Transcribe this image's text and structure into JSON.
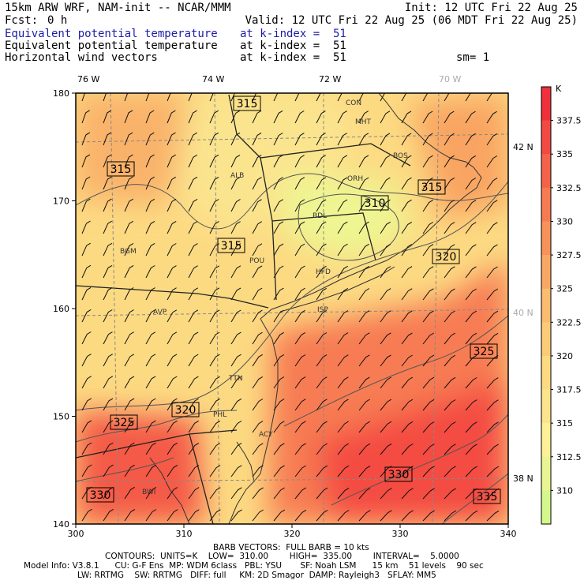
{
  "header": {
    "model": "15km ARW WRF, NAM-init -- NCAR/MMM",
    "init": "Init: 12 UTC Fri 22 Aug 25",
    "fcst_label": "Fcst:",
    "fcst_value": "0 h",
    "valid": "Valid: 12 UTC Fri 22 Aug 25 (06 MDT Fri 22 Aug 25)",
    "fields": [
      {
        "name": "Equivalent potential temperature",
        "level": "at k-index =  51",
        "highlight": true
      },
      {
        "name": "Equivalent potential temperature",
        "level": "at k-index =  51",
        "highlight": false
      },
      {
        "name": "Horizontal wind vectors",
        "level": "at k-index =  51",
        "highlight": false
      }
    ],
    "smoothing": "sm= 1"
  },
  "map": {
    "x_ticks": [
      "300",
      "310",
      "320",
      "330",
      "340"
    ],
    "y_ticks": [
      "140",
      "150",
      "160",
      "170",
      "180"
    ],
    "lon_labels": [
      "76 W",
      "74 W",
      "72 W",
      "70 W"
    ],
    "lat_labels": [
      "42 N",
      "40 N",
      "38 N"
    ],
    "cities": [
      "CON",
      "MHT",
      "BOS",
      "ORH",
      "ALB",
      "BDL",
      "BGM",
      "POU",
      "HFD",
      "AVP",
      "ISP",
      "TTN",
      "PHL",
      "ACY",
      "BWI"
    ],
    "contour_labels": [
      "315",
      "315",
      "315",
      "310",
      "315",
      "320",
      "325",
      "320",
      "325",
      "330",
      "330",
      "335"
    ]
  },
  "colorbar": {
    "unit": "K",
    "labels": [
      "337.5",
      "335",
      "332.5",
      "330",
      "327.5",
      "325",
      "322.5",
      "320",
      "317.5",
      "315",
      "312.5",
      "310"
    ],
    "colors": [
      "#f0303a",
      "#f24a42",
      "#f4624a",
      "#f67a52",
      "#f8925a",
      "#f9a864",
      "#fabc6e",
      "#fbcc78",
      "#fcda82",
      "#fde48c",
      "#fdf096",
      "#e8f592",
      "#d4f88c"
    ]
  },
  "footer": {
    "barb": "BARB VECTORS:  FULL BARB = 10 kts",
    "contours": "CONTOURS:  UNITS=K    LOW=  310.00        HIGH=  335.00        INTERVAL=    5.0000",
    "model_info": "Model Info: V3.8.1      CU: G-F Ens  MP: WDM 6class   PBL: YSU       SF: Noah LSM      15 km    51 levels    90 sec",
    "model_info2": "LW: RRTMG    SW: RRTMG   DIFF: full     KM: 2D Smagor  DAMP: Rayleigh3   SFLAY: MM5"
  }
}
